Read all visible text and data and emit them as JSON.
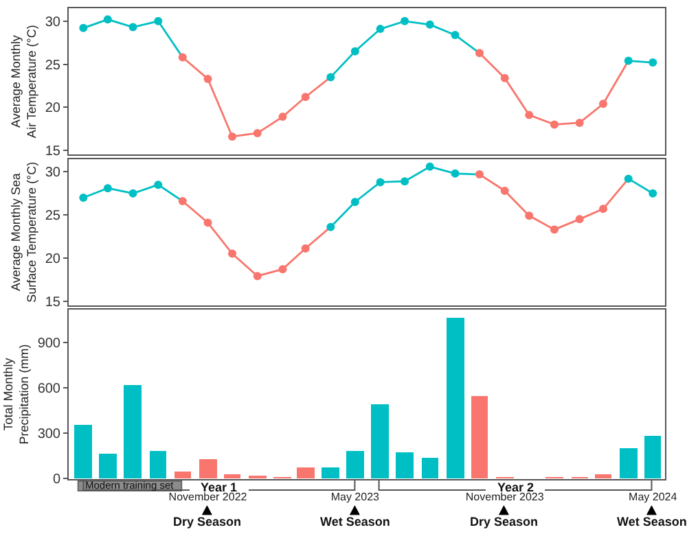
{
  "chart_data": [
    {
      "type": "line",
      "ylabel": "Average Monthly\nAir Temperature (°C)",
      "x": [
        "2022-06",
        "2022-07",
        "2022-08",
        "2022-09",
        "2022-10",
        "2022-11",
        "2022-12",
        "2023-01",
        "2023-02",
        "2023-03",
        "2023-04",
        "2023-05",
        "2023-06",
        "2023-07",
        "2023-08",
        "2023-09",
        "2023-10",
        "2023-11",
        "2023-12",
        "2024-01",
        "2024-02",
        "2024-03",
        "2024-04",
        "2024-05"
      ],
      "xlim": [
        "2022-05-14",
        "2024-05-16"
      ],
      "ylim": [
        14.5,
        31.5
      ],
      "yticks": [
        15,
        20,
        25,
        30
      ],
      "tick_labels": "y",
      "marker": "circle",
      "line_style": "solid",
      "series": [
        {
          "color": "#00bfc4",
          "values": [
            29.2,
            30.2,
            29.3,
            30.0,
            25.8,
            null,
            null,
            null,
            null,
            null,
            23.5,
            26.5,
            29.1,
            30.0,
            29.6,
            28.4,
            26.3,
            null,
            null,
            null,
            null,
            null,
            25.4,
            25.2
          ],
          "colors": [
            "#00bfc4",
            "#00bfc4",
            "#00bfc4",
            "#00bfc4",
            null,
            null,
            null,
            null,
            null,
            null,
            "#00bfc4",
            "#00bfc4",
            "#00bfc4",
            "#00bfc4",
            "#00bfc4",
            "#00bfc4",
            null,
            null,
            null,
            null,
            null,
            null,
            "#00bfc4",
            "#00bfc4"
          ]
        },
        {
          "color": "#f8766d",
          "values": [
            null,
            null,
            null,
            null,
            25.8,
            23.3,
            16.6,
            17.0,
            18.9,
            21.2,
            23.5,
            null,
            null,
            null,
            null,
            null,
            26.3,
            23.4,
            19.1,
            18.0,
            18.2,
            20.4,
            25.4,
            null
          ],
          "colors": [
            null,
            null,
            null,
            null,
            "#f8766d",
            "#f8766d",
            "#f8766d",
            "#f8766d",
            "#f8766d",
            "#f8766d",
            null,
            null,
            null,
            null,
            null,
            null,
            "#f8766d",
            "#f8766d",
            "#f8766d",
            "#f8766d",
            "#f8766d",
            "#f8766d",
            null,
            null
          ]
        }
      ]
    },
    {
      "type": "line",
      "ylabel": "Average Monthly Sea\nSurface Temperature (°C)",
      "x": [
        "2022-06",
        "2022-07",
        "2022-08",
        "2022-09",
        "2022-10",
        "2022-11",
        "2022-12",
        "2023-01",
        "2023-02",
        "2023-03",
        "2023-04",
        "2023-05",
        "2023-06",
        "2023-07",
        "2023-08",
        "2023-09",
        "2023-10",
        "2023-11",
        "2023-12",
        "2024-01",
        "2024-02",
        "2024-03",
        "2024-04",
        "2024-05"
      ],
      "xlim": [
        "2022-05-14",
        "2024-05-16"
      ],
      "ylim": [
        14.5,
        31.5
      ],
      "yticks": [
        15,
        20,
        25,
        30
      ],
      "tick_labels": "y",
      "marker": "circle",
      "line_style": "solid",
      "series": [
        {
          "color": "#00bfc4",
          "values": [
            27.0,
            28.1,
            27.5,
            28.5,
            26.6,
            null,
            null,
            null,
            null,
            null,
            23.6,
            26.5,
            28.8,
            28.9,
            30.6,
            29.8,
            29.7,
            null,
            null,
            null,
            null,
            null,
            29.2,
            27.5
          ],
          "colors": [
            "#00bfc4",
            "#00bfc4",
            "#00bfc4",
            "#00bfc4",
            null,
            null,
            null,
            null,
            null,
            null,
            "#00bfc4",
            "#00bfc4",
            "#00bfc4",
            "#00bfc4",
            "#00bfc4",
            "#00bfc4",
            null,
            null,
            null,
            null,
            null,
            null,
            "#00bfc4",
            "#00bfc4"
          ]
        },
        {
          "color": "#f8766d",
          "values": [
            null,
            null,
            null,
            null,
            26.6,
            24.1,
            20.5,
            17.9,
            18.7,
            21.1,
            23.6,
            null,
            null,
            null,
            null,
            null,
            29.7,
            27.8,
            24.9,
            23.3,
            24.5,
            25.7,
            29.2,
            null
          ],
          "colors": [
            null,
            null,
            null,
            null,
            "#f8766d",
            "#f8766d",
            "#f8766d",
            "#f8766d",
            "#f8766d",
            "#f8766d",
            null,
            null,
            null,
            null,
            null,
            null,
            "#f8766d",
            "#f8766d",
            "#f8766d",
            "#f8766d",
            "#f8766d",
            "#f8766d",
            null,
            null
          ]
        }
      ]
    },
    {
      "type": "bar",
      "ylabel": "Total Monthly\nPrecipitation (mm)",
      "x": [
        "2022-06",
        "2022-07",
        "2022-08",
        "2022-09",
        "2022-10",
        "2022-11",
        "2022-12",
        "2023-01",
        "2023-02",
        "2023-03",
        "2023-04",
        "2023-05",
        "2023-06",
        "2023-07",
        "2023-08",
        "2023-09",
        "2023-10",
        "2023-11",
        "2023-12",
        "2024-01",
        "2024-02",
        "2024-03",
        "2024-04",
        "2024-05"
      ],
      "xlim": [
        "2022-05-14",
        "2024-05-16"
      ],
      "ylim": [
        -5,
        1118
      ],
      "yticks": [
        0,
        300,
        600,
        900
      ],
      "xticks": [
        {
          "value": "2022-11",
          "label": "November 2022"
        },
        {
          "value": "2023-05",
          "label": "May 2023"
        },
        {
          "value": "2023-11",
          "label": "November 2023"
        },
        {
          "value": "2024-05",
          "label": "May 2024"
        }
      ],
      "series": [
        {
          "values": [
            355,
            165,
            615,
            185,
            45,
            130,
            25,
            20,
            5,
            70,
            75,
            180,
            490,
            175,
            140,
            1065,
            545,
            5,
            0,
            5,
            5,
            25,
            195,
            280
          ],
          "colors": [
            "#00bfc4",
            "#00bfc4",
            "#00bfc4",
            "#00bfc4",
            "#f8766d",
            "#f8766d",
            "#f8766d",
            "#f8766d",
            "#f8766d",
            "#f8766d",
            "#00bfc4",
            "#00bfc4",
            "#00bfc4",
            "#00bfc4",
            "#00bfc4",
            "#00bfc4",
            "#f8766d",
            "#f8766d",
            "#f8766d",
            "#f8766d",
            "#f8766d",
            "#f8766d",
            "#00bfc4",
            "#00bfc4"
          ]
        }
      ],
      "annotations": [
        "Modern training set",
        "Year 1",
        "Year 2",
        "Dry Season",
        "Wet Season",
        "Dry Season",
        "Wet Season"
      ]
    }
  ]
}
